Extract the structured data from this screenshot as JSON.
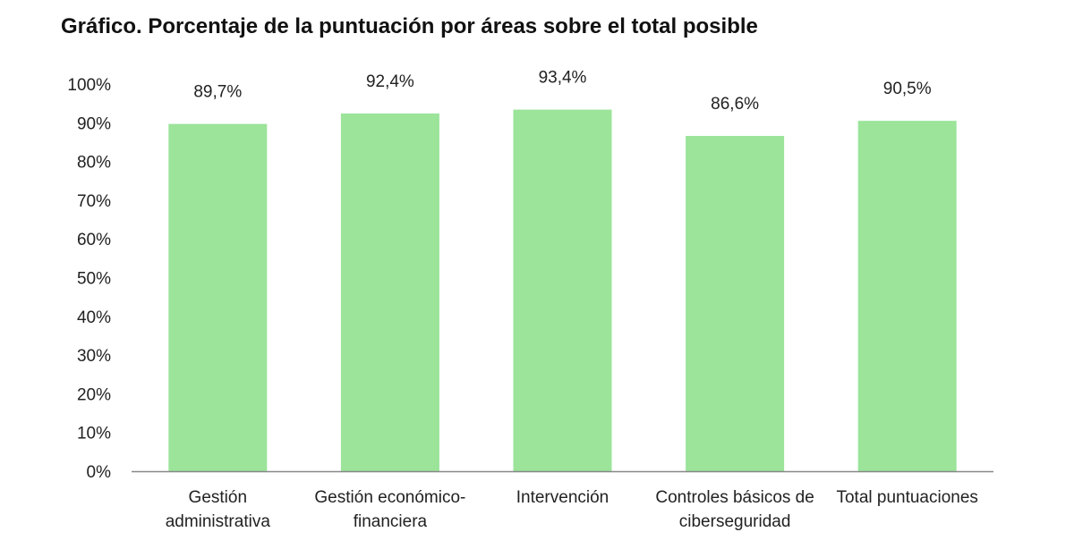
{
  "chart_data": {
    "type": "bar",
    "title": "Gráfico. Porcentaje de la puntuación por áreas sobre el total posible",
    "categories": [
      [
        "Gestión",
        "administrativa"
      ],
      [
        "Gestión económico-",
        "financiera"
      ],
      [
        "Intervención"
      ],
      [
        "Controles básicos de",
        "ciberseguridad"
      ],
      [
        "Total puntuaciones"
      ]
    ],
    "values": [
      89.7,
      92.4,
      93.4,
      86.6,
      90.5
    ],
    "data_labels": [
      "89,7%",
      "92,4%",
      "93,4%",
      "86,6%",
      "90,5%"
    ],
    "ylim": [
      0,
      100
    ],
    "y_ticks": [
      "0%",
      "10%",
      "20%",
      "30%",
      "40%",
      "50%",
      "60%",
      "70%",
      "80%",
      "90%",
      "100%"
    ],
    "xlabel": "",
    "ylabel": "",
    "grid": false,
    "colors": {
      "bar": "#9be49a",
      "axis": "#888888"
    }
  }
}
